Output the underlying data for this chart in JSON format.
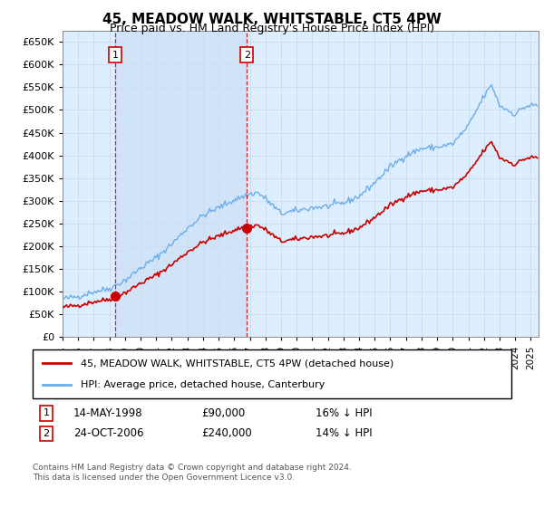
{
  "title": "45, MEADOW WALK, WHITSTABLE, CT5 4PW",
  "subtitle": "Price paid vs. HM Land Registry's House Price Index (HPI)",
  "ylim": [
    0,
    675000
  ],
  "xlim_start": 1995.0,
  "xlim_end": 2025.5,
  "sale1_x": 1998.37,
  "sale1_y": 90000,
  "sale2_x": 2006.81,
  "sale2_y": 240000,
  "legend_label1": "45, MEADOW WALK, WHITSTABLE, CT5 4PW (detached house)",
  "legend_label2": "HPI: Average price, detached house, Canterbury",
  "annotation1_date": "14-MAY-1998",
  "annotation1_price": "£90,000",
  "annotation1_hpi": "16% ↓ HPI",
  "annotation2_date": "24-OCT-2006",
  "annotation2_price": "£240,000",
  "annotation2_hpi": "14% ↓ HPI",
  "footer": "Contains HM Land Registry data © Crown copyright and database right 2024.\nThis data is licensed under the Open Government Licence v3.0.",
  "hpi_color": "#6daee8",
  "sale_color": "#cc0000",
  "bg_color": "#ddeeff",
  "shade_color": "#cce0f5",
  "grid_color": "#c8d8e8"
}
